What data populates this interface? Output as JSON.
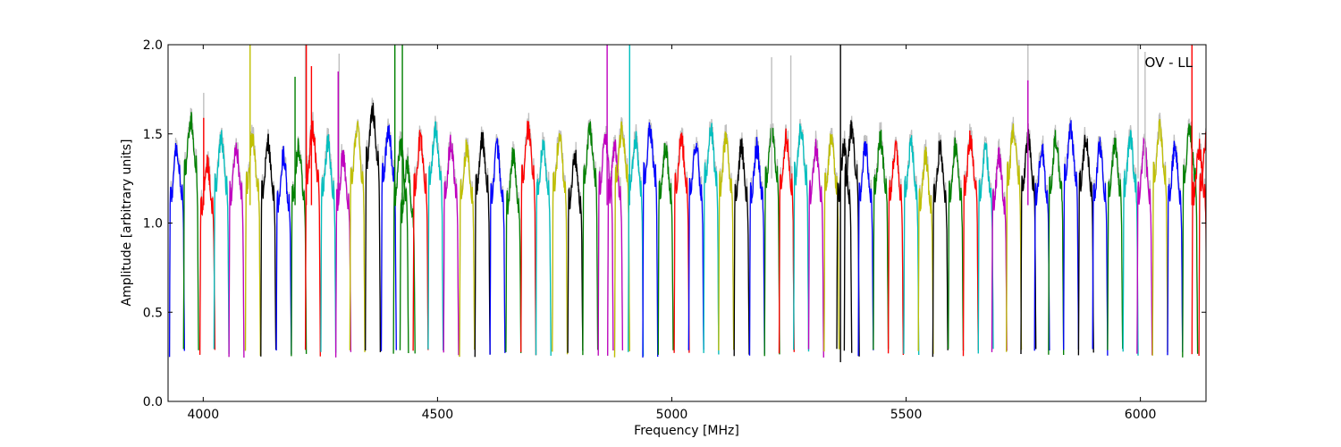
{
  "chart_data": {
    "type": "line",
    "title": "",
    "xlabel": "Frequency [MHz]",
    "ylabel": "Amplitude [arbitrary units]",
    "xlim": [
      3925,
      6140
    ],
    "ylim": [
      0.0,
      2.0
    ],
    "xticks": [
      4000,
      4500,
      5000,
      5500,
      6000
    ],
    "yticks": [
      0.0,
      0.5,
      1.0,
      1.5,
      2.0
    ],
    "xtick_labels": [
      "4000",
      "4500",
      "5000",
      "5500",
      "6000"
    ],
    "ytick_labels": [
      "0.0",
      "0.5",
      "1.0",
      "1.5",
      "2.0"
    ],
    "grid": false,
    "annotation": "OV - LL",
    "annotation_position": "top-right",
    "background_series_color": "#bfbfbf",
    "band_colors": [
      "#0000ff",
      "#008000",
      "#ff0000",
      "#00bfbf",
      "#bf00bf",
      "#bfbf00",
      "#000000"
    ],
    "vertical_marker": {
      "x": 5360,
      "color": "#000000"
    },
    "band_width_mhz": 32,
    "band_starts_mhz": [
      3928,
      3958,
      3993,
      4023,
      4055,
      4090,
      4123,
      4156,
      4188,
      4218,
      4251,
      4283,
      4313,
      4346,
      4380,
      4406,
      4420,
      4448,
      4480,
      4513,
      4547,
      4580,
      4612,
      4646,
      4678,
      4710,
      4745,
      4778,
      4810,
      4843,
      4863,
      4878,
      4907,
      4938,
      4971,
      5005,
      5036,
      5068,
      5100,
      5133,
      5166,
      5198,
      5229,
      5260,
      5292,
      5325,
      5352,
      5368,
      5398,
      5430,
      5462,
      5495,
      5526,
      5557,
      5590,
      5622,
      5654,
      5683,
      5714,
      5745,
      5774,
      5804,
      5836,
      5868,
      5898,
      5930,
      5963,
      5993,
      6026,
      6058,
      6090,
      6110,
      6125
    ],
    "band_color_index": [
      0,
      1,
      2,
      3,
      4,
      5,
      6,
      0,
      1,
      2,
      3,
      4,
      5,
      6,
      0,
      1,
      1,
      2,
      3,
      4,
      5,
      6,
      0,
      1,
      2,
      3,
      5,
      6,
      1,
      4,
      4,
      5,
      3,
      0,
      1,
      2,
      0,
      3,
      5,
      6,
      0,
      1,
      2,
      3,
      4,
      5,
      6,
      6,
      0,
      1,
      2,
      3,
      5,
      6,
      1,
      2,
      3,
      4,
      5,
      6,
      0,
      1,
      0,
      6,
      0,
      1,
      3,
      4,
      5,
      0,
      1,
      2,
      2
    ],
    "band_level": [
      1.2,
      1.35,
      1.12,
      1.25,
      1.2,
      1.25,
      1.22,
      1.15,
      1.2,
      1.3,
      1.22,
      1.15,
      1.3,
      1.4,
      1.3,
      1.2,
      1.1,
      1.25,
      1.3,
      1.22,
      1.2,
      1.25,
      1.2,
      1.15,
      1.3,
      1.22,
      1.25,
      1.15,
      1.3,
      1.25,
      1.2,
      1.3,
      1.25,
      1.3,
      1.2,
      1.25,
      1.22,
      1.3,
      1.25,
      1.2,
      1.2,
      1.3,
      1.25,
      1.3,
      1.2,
      1.25,
      1.2,
      1.3,
      1.2,
      1.25,
      1.2,
      1.22,
      1.15,
      1.2,
      1.2,
      1.25,
      1.2,
      1.15,
      1.3,
      1.25,
      1.2,
      1.25,
      1.3,
      1.25,
      1.2,
      1.22,
      1.25,
      1.2,
      1.3,
      1.2,
      1.3,
      1.2,
      1.25
    ],
    "spikes": [
      {
        "x": 4001,
        "y": 1.59,
        "color": "#ff0000"
      },
      {
        "x": 4100,
        "y": 2.0,
        "color": "#bfbf00"
      },
      {
        "x": 4196,
        "y": 1.82,
        "color": "#008000"
      },
      {
        "x": 4220,
        "y": 2.0,
        "color": "#ff0000"
      },
      {
        "x": 4231,
        "y": 1.88,
        "color": "#ff0000"
      },
      {
        "x": 4288,
        "y": 1.85,
        "color": "#bf00bf"
      },
      {
        "x": 4409,
        "y": 2.0,
        "color": "#008000"
      },
      {
        "x": 4425,
        "y": 2.0,
        "color": "#008000"
      },
      {
        "x": 4862,
        "y": 2.0,
        "color": "#bf00bf"
      },
      {
        "x": 4910,
        "y": 2.0,
        "color": "#00bfbf"
      },
      {
        "x": 5760,
        "y": 1.8,
        "color": "#bf00bf"
      },
      {
        "x": 6110,
        "y": 2.0,
        "color": "#ff0000"
      }
    ],
    "gray_spikes": [
      {
        "x": 4001,
        "y": 1.73
      },
      {
        "x": 4218,
        "y": 2.0
      },
      {
        "x": 4290,
        "y": 1.95
      },
      {
        "x": 5213,
        "y": 1.93
      },
      {
        "x": 5254,
        "y": 1.94
      },
      {
        "x": 5760,
        "y": 2.0
      },
      {
        "x": 5995,
        "y": 2.0
      },
      {
        "x": 6010,
        "y": 1.96
      }
    ]
  }
}
